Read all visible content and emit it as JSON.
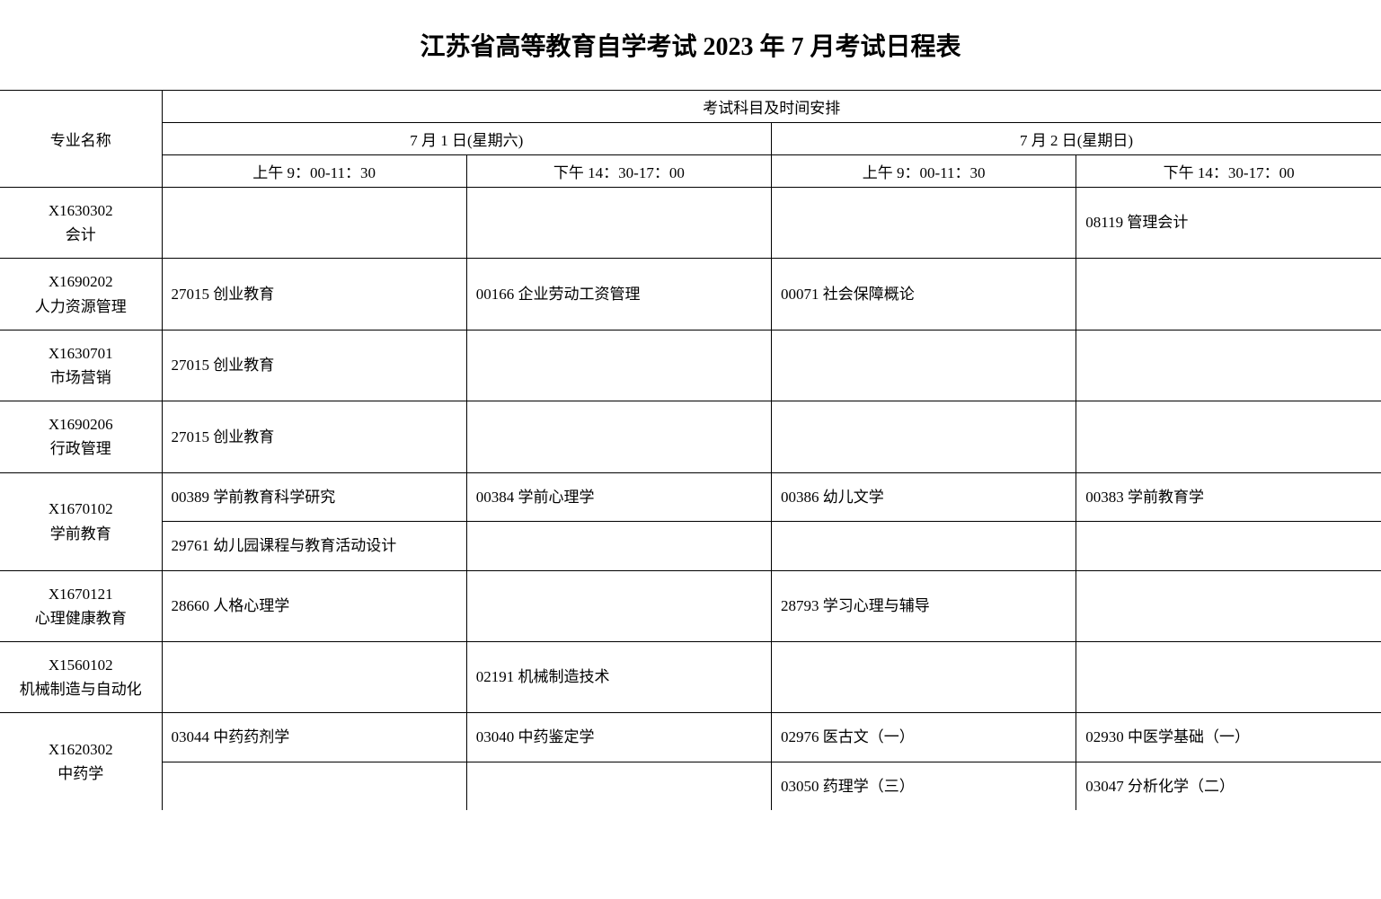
{
  "title": "江苏省高等教育自学考试 2023 年 7 月考试日程表",
  "table": {
    "header": {
      "col_major": "专业名称",
      "col_schedule": "考试科目及时间安排",
      "day1": "7 月 1 日(星期六)",
      "day2": "7 月 2 日(星期日)",
      "d1_am": "上午 9：00-11：30",
      "d1_pm": "下午 14：30-17：00",
      "d2_am": "上午 9：00-11：30",
      "d2_pm": "下午 14：30-17：00"
    },
    "rows": [
      {
        "code": "X1630302",
        "name": "会计",
        "d1am": [
          ""
        ],
        "d1pm": [
          ""
        ],
        "d2am": [
          ""
        ],
        "d2pm": [
          "08119 管理会计"
        ]
      },
      {
        "code": "X1690202",
        "name": "人力资源管理",
        "d1am": [
          "27015 创业教育"
        ],
        "d1pm": [
          "00166 企业劳动工资管理"
        ],
        "d2am": [
          "00071 社会保障概论"
        ],
        "d2pm": [
          ""
        ]
      },
      {
        "code": "X1630701",
        "name": "市场营销",
        "d1am": [
          "27015 创业教育"
        ],
        "d1pm": [
          ""
        ],
        "d2am": [
          ""
        ],
        "d2pm": [
          ""
        ]
      },
      {
        "code": "X1690206",
        "name": "行政管理",
        "d1am": [
          "27015 创业教育"
        ],
        "d1pm": [
          ""
        ],
        "d2am": [
          ""
        ],
        "d2pm": [
          ""
        ]
      },
      {
        "code": "X1670102",
        "name": "学前教育",
        "d1am": [
          "00389 学前教育科学研究",
          "29761 幼儿园课程与教育活动设计"
        ],
        "d1pm": [
          "00384 学前心理学",
          ""
        ],
        "d2am": [
          "00386 幼儿文学",
          ""
        ],
        "d2pm": [
          "00383 学前教育学",
          ""
        ]
      },
      {
        "code": "X1670121",
        "name": "心理健康教育",
        "d1am": [
          "28660 人格心理学"
        ],
        "d1pm": [
          ""
        ],
        "d2am": [
          "28793 学习心理与辅导"
        ],
        "d2pm": [
          ""
        ]
      },
      {
        "code": "X1560102",
        "name": "机械制造与自动化",
        "d1am": [
          ""
        ],
        "d1pm": [
          "02191 机械制造技术"
        ],
        "d2am": [
          ""
        ],
        "d2pm": [
          ""
        ]
      },
      {
        "code": "X1620302",
        "name": "中药学",
        "d1am": [
          "03044 中药药剂学",
          ""
        ],
        "d1pm": [
          "03040 中药鉴定学",
          ""
        ],
        "d2am": [
          "02976 医古文（一）",
          "03050 药理学（三）"
        ],
        "d2pm": [
          "02930 中医学基础（一）",
          "03047 分析化学（二）"
        ]
      }
    ]
  },
  "style": {
    "background_color": "#ffffff",
    "text_color": "#000000",
    "border_color": "#000000",
    "title_fontsize": 28,
    "cell_fontsize": 17
  }
}
